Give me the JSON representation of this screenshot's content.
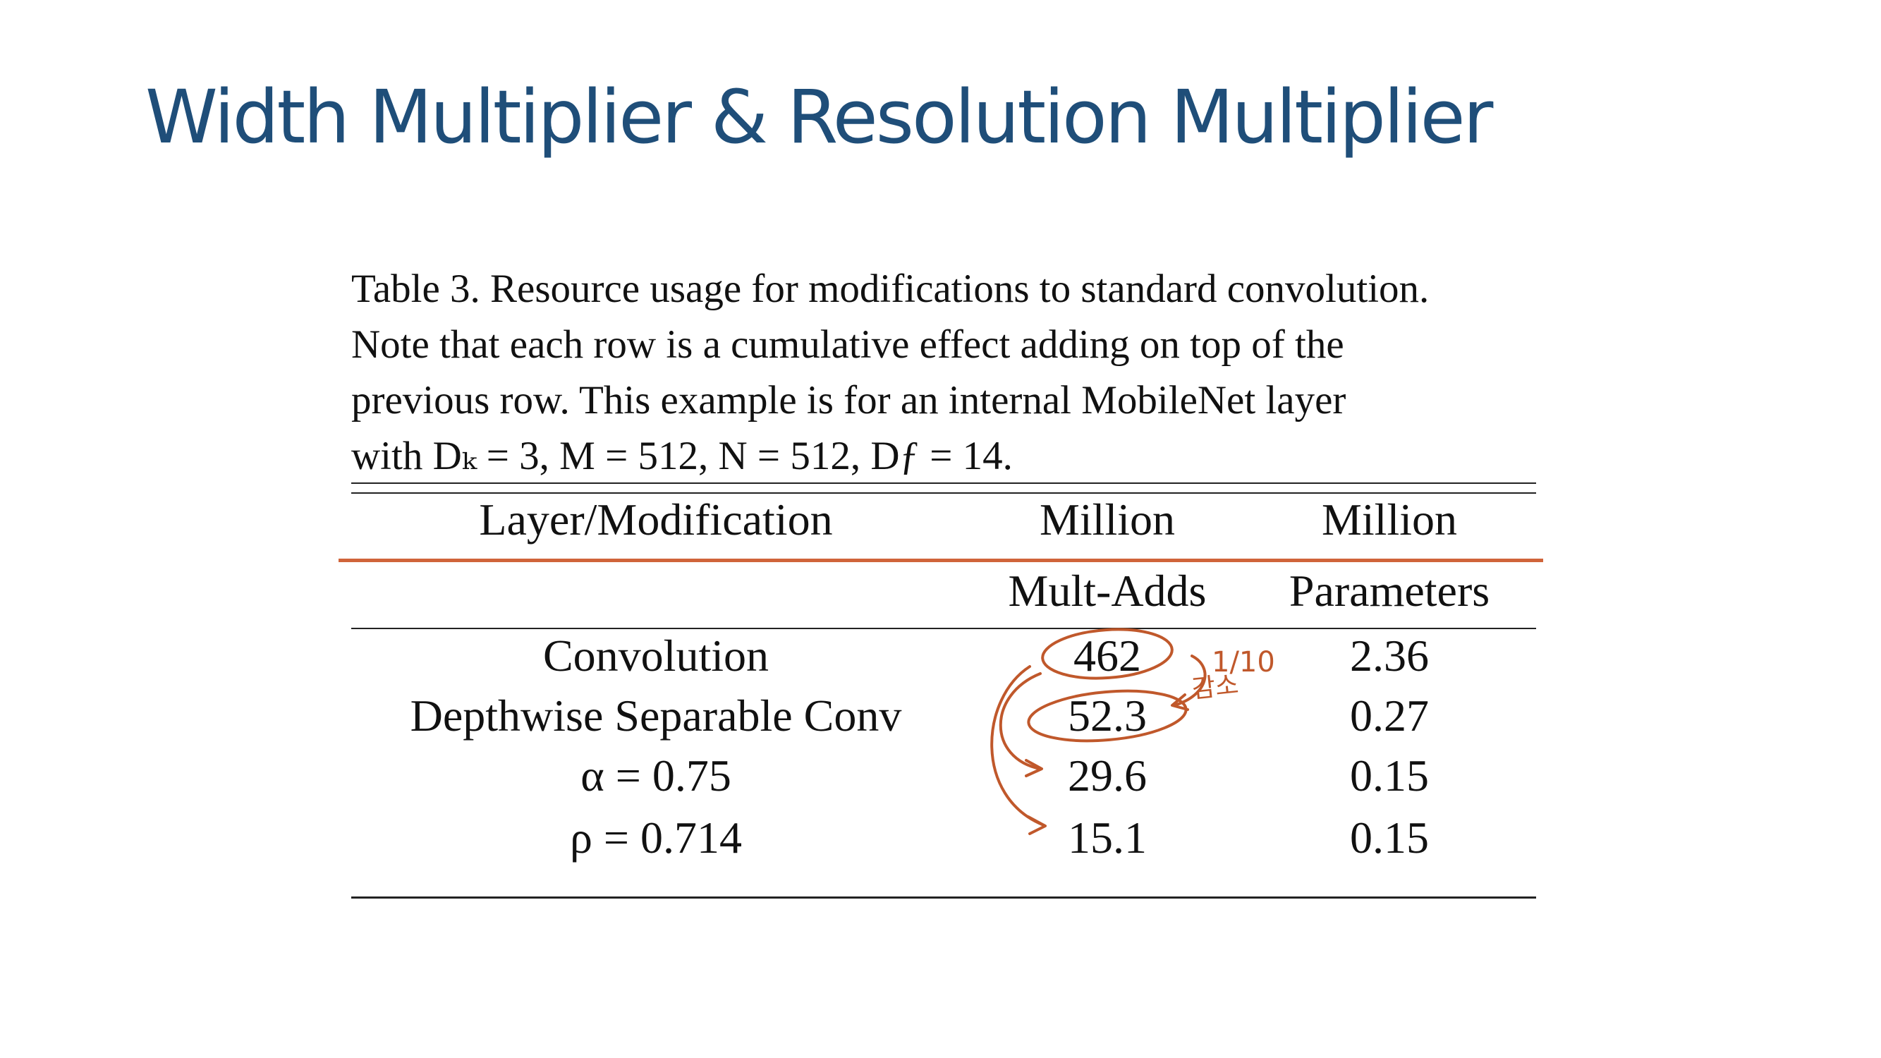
{
  "title": "Width Multiplier & Resolution Multiplier",
  "caption": {
    "lines": [
      "Table 3. Resource usage for modifications to standard convolution.",
      "Note that each row is a cumulative effect adding on top of the",
      "previous row.  This example is for an internal MobileNet layer",
      "with Dₖ = 3, M = 512, N = 512, Dƒ = 14."
    ]
  },
  "table": {
    "headers": {
      "layer": "Layer/Modification",
      "multadds_top": "Million",
      "multadds_bottom": "Mult-Adds",
      "params_top": "Million",
      "params_bottom": "Parameters"
    },
    "rows": [
      {
        "layer": "Convolution",
        "multadds": "462",
        "params": "2.36"
      },
      {
        "layer": "Depthwise Separable Conv",
        "multadds": "52.3",
        "params": "0.27"
      },
      {
        "layer": "α = 0.75",
        "multadds": "29.6",
        "params": "0.15"
      },
      {
        "layer": "ρ = 0.714",
        "multadds": "15.1",
        "params": "0.15"
      }
    ]
  },
  "annotation": {
    "fraction": "1/10",
    "korean_note": "감소",
    "ink_color": "#c0582b"
  },
  "colors": {
    "title": "#1f4e79",
    "accent_rule": "#d0643a"
  }
}
